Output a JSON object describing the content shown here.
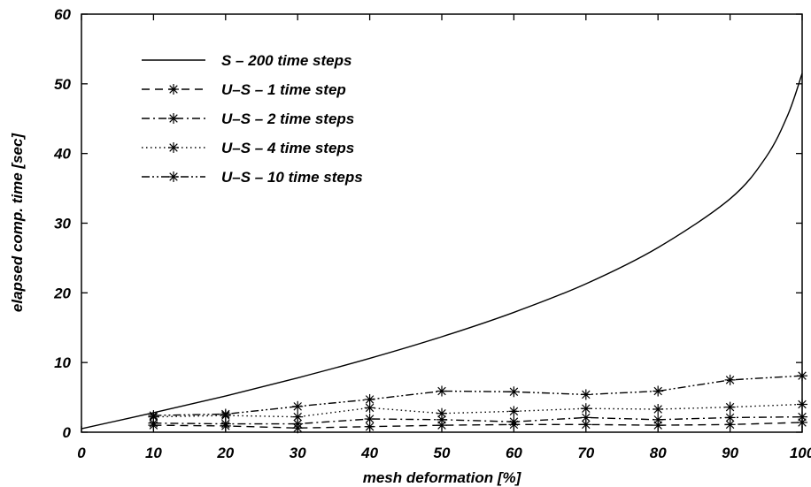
{
  "chart_data": {
    "type": "line",
    "title": "",
    "xlabel": "mesh deformation [%]",
    "ylabel": "elapsed comp. time [sec]",
    "xlim": [
      0,
      100
    ],
    "ylim": [
      0,
      60
    ],
    "xticks": [
      0,
      10,
      20,
      30,
      40,
      50,
      60,
      70,
      80,
      90,
      100
    ],
    "yticks": [
      0,
      10,
      20,
      30,
      40,
      50,
      60
    ],
    "grid": false,
    "legend_position": "top-left",
    "series": [
      {
        "name": "S – 200 time steps",
        "style": "solid",
        "markers": false,
        "x": [
          0,
          10,
          20,
          30,
          40,
          50,
          60,
          70,
          80,
          90,
          95,
          98,
          100
        ],
        "y": [
          0.5,
          2.8,
          5.2,
          7.8,
          10.6,
          13.7,
          17.2,
          21.3,
          26.5,
          33.5,
          39.5,
          45.5,
          51.5
        ]
      },
      {
        "name": "U–S – 1 time step",
        "style": "dashed",
        "markers": true,
        "x": [
          10,
          20,
          30,
          40,
          50,
          60,
          70,
          80,
          90,
          100
        ],
        "y": [
          1.0,
          0.9,
          0.6,
          0.8,
          1.0,
          1.1,
          1.1,
          1.0,
          1.1,
          1.4
        ]
      },
      {
        "name": "U–S – 2 time steps",
        "style": "dashdot",
        "markers": true,
        "x": [
          10,
          20,
          30,
          40,
          50,
          60,
          70,
          80,
          90,
          100
        ],
        "y": [
          1.3,
          1.2,
          1.2,
          1.9,
          1.8,
          1.5,
          2.1,
          1.8,
          2.1,
          2.2
        ]
      },
      {
        "name": "U–S – 4 time steps",
        "style": "dotted",
        "markers": true,
        "x": [
          10,
          20,
          30,
          40,
          50,
          60,
          70,
          80,
          90,
          100
        ],
        "y": [
          2.2,
          2.4,
          2.2,
          3.5,
          2.7,
          3.0,
          3.4,
          3.3,
          3.6,
          4.0
        ]
      },
      {
        "name": "U–S – 10 time steps",
        "style": "dashdotdot",
        "markers": true,
        "x": [
          10,
          20,
          30,
          40,
          50,
          60,
          70,
          80,
          90,
          100
        ],
        "y": [
          2.4,
          2.6,
          3.7,
          4.7,
          5.9,
          5.8,
          5.4,
          5.9,
          7.5,
          8.1
        ]
      }
    ]
  }
}
